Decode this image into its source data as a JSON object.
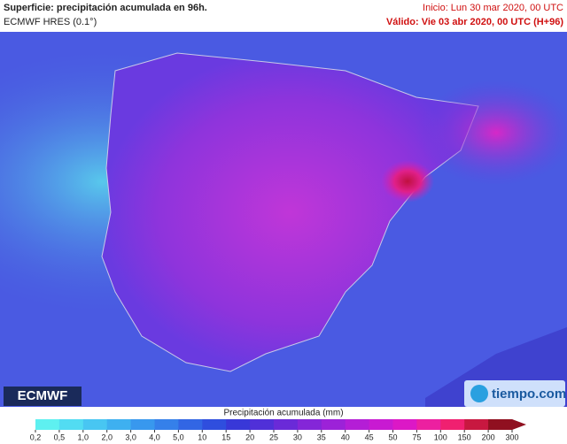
{
  "header": {
    "title": "Superficie: precipitación acumulada en 96h.",
    "model": "ECMWF HRES (0.1°)",
    "init": "Inicio: Lun 30 mar 2020, 00 UTC",
    "valid": "Válido: Vie 03 abr 2020, 00 UTC (H+96)"
  },
  "logos": {
    "left": "ECMWF",
    "right": "tiempo.com"
  },
  "legend": {
    "title": "Precipitación acumulada (mm)",
    "ticks": [
      "0,2",
      "0,5",
      "1,0",
      "2,0",
      "3,0",
      "4,0",
      "5,0",
      "10",
      "15",
      "20",
      "25",
      "30",
      "35",
      "40",
      "45",
      "50",
      "75",
      "100",
      "150",
      "200",
      "300"
    ],
    "colors": [
      "#5ef0f0",
      "#52dcf2",
      "#48c6f2",
      "#3eb0f0",
      "#3898ee",
      "#3580ea",
      "#3266e4",
      "#2f4ede",
      "#3838d8",
      "#5030d8",
      "#6a2ad8",
      "#8426d8",
      "#9c22d8",
      "#b41ed6",
      "#c81ad2",
      "#dc18c6",
      "#ec20a0",
      "#f02070",
      "#c81840",
      "#901020"
    ]
  }
}
